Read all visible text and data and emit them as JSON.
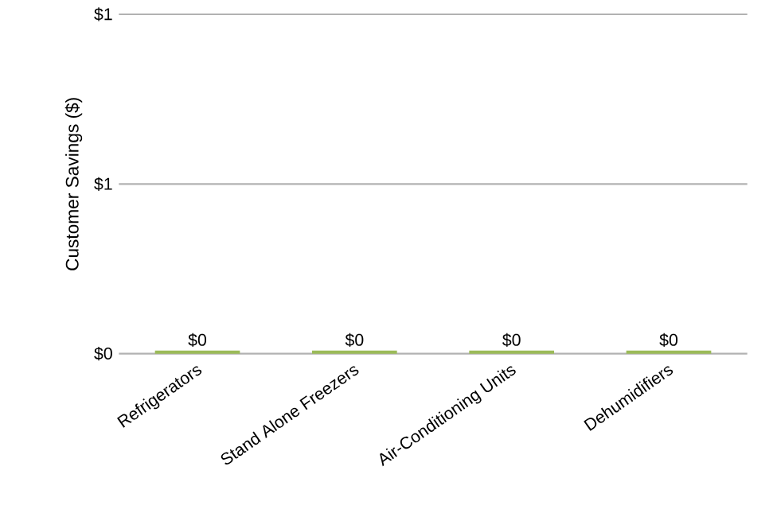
{
  "chart_data": {
    "type": "bar",
    "ylabel": "Customer Savings ($)",
    "categories": [
      "Refrigerators",
      "Stand Alone Freezers",
      "Air-Conditioning Units",
      "Dehumidifiers"
    ],
    "values": [
      0,
      0,
      0,
      0
    ],
    "value_labels": [
      "$0",
      "$0",
      "$0",
      "$0"
    ],
    "color": "#9bbb59",
    "ylim": [
      0,
      1
    ],
    "yticks": [
      {
        "value": 0,
        "label": "$0"
      },
      {
        "value": 0.5,
        "label": "$1"
      },
      {
        "value": 1,
        "label": "$1"
      }
    ],
    "grid": "y"
  }
}
